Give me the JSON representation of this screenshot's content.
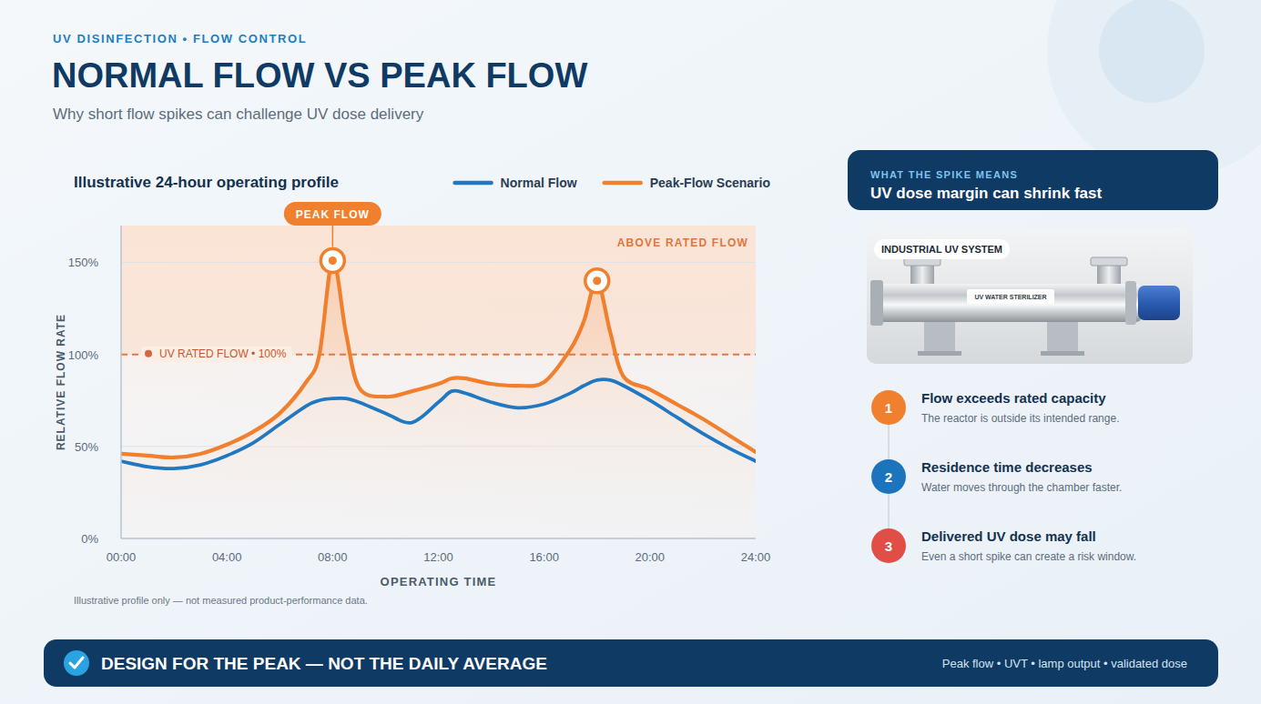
{
  "header": {
    "kicker": "UV DISINFECTION • FLOW CONTROL",
    "title": "NORMAL FLOW VS PEAK FLOW",
    "subtitle": "Why short flow spikes can challenge UV dose delivery"
  },
  "chart_data": {
    "type": "line",
    "title": "Illustrative 24-hour operating profile",
    "x_label": "OPERATING TIME",
    "y_label": "RELATIVE FLOW RATE",
    "x": [
      0,
      1,
      2,
      3,
      4,
      5,
      6,
      7,
      7.5,
      8,
      8.5,
      9,
      10,
      11,
      12,
      12.5,
      13,
      14,
      15,
      16,
      17,
      17.5,
      18,
      18.5,
      19,
      20,
      21,
      22,
      23,
      24
    ],
    "xlim": [
      0,
      24
    ],
    "xticks": [
      {
        "value": 0,
        "label": "00:00"
      },
      {
        "value": 4,
        "label": "04:00"
      },
      {
        "value": 8,
        "label": "08:00"
      },
      {
        "value": 12,
        "label": "12:00"
      },
      {
        "value": 16,
        "label": "16:00"
      },
      {
        "value": 20,
        "label": "20:00"
      },
      {
        "value": 24,
        "label": "24:00"
      }
    ],
    "ylim": [
      0,
      170
    ],
    "yticks": [
      {
        "value": 0,
        "label": "0%"
      },
      {
        "value": 50,
        "label": "50%"
      },
      {
        "value": 100,
        "label": "100%"
      },
      {
        "value": 150,
        "label": "150%"
      }
    ],
    "grid": true,
    "legend": "top",
    "series": [
      {
        "name": "Normal Flow",
        "color": "#1f78c1",
        "values": [
          42,
          39,
          38,
          40,
          45,
          52,
          62,
          72,
          75,
          76,
          76,
          74,
          68,
          63,
          74,
          80,
          79,
          74,
          71,
          73,
          79,
          83,
          86,
          86,
          83,
          75,
          66,
          57,
          49,
          42
        ]
      },
      {
        "name": "Peak-Flow Scenario",
        "color": "#f07f2e",
        "values": [
          46,
          45,
          44,
          46,
          51,
          58,
          68,
          85,
          100,
          151,
          112,
          82,
          77,
          80,
          84,
          87,
          87,
          84,
          83,
          85,
          103,
          118,
          140,
          112,
          88,
          81,
          73,
          65,
          56,
          47
        ]
      }
    ],
    "reference_line": {
      "value": 100,
      "label": "UV RATED FLOW • 100%"
    },
    "shaded_region": {
      "from": 100,
      "to": 170,
      "label": "ABOVE RATED FLOW"
    },
    "callout": {
      "label": "PEAK FLOW",
      "series": 1,
      "x": 8
    },
    "highlights": [
      {
        "series": 1,
        "x": 8
      },
      {
        "series": 1,
        "x": 18
      }
    ],
    "footnote": "Illustrative profile only — not measured product-performance data."
  },
  "side_panel": {
    "kicker": "WHAT THE SPIKE MEANS",
    "title": "UV dose margin can shrink fast",
    "image_label": "INDUSTRIAL UV SYSTEM",
    "product_label": "UV WATER STERILIZER",
    "steps": [
      {
        "number": 1,
        "title": "Flow exceeds rated capacity",
        "text": "The reactor is outside its intended range.",
        "color": "#f07f2e"
      },
      {
        "number": 2,
        "title": "Residence time decreases",
        "text": "Water moves through the chamber faster.",
        "color": "#1c75bc"
      },
      {
        "number": 3,
        "title": "Delivered UV dose may fall",
        "text": "Even a short spike can create a risk window.",
        "color": "#e04e45"
      }
    ]
  },
  "footer": {
    "message": "DESIGN FOR THE PEAK — NOT THE DAILY AVERAGE",
    "tags": "Peak flow • UVT • lamp output • validated dose"
  }
}
